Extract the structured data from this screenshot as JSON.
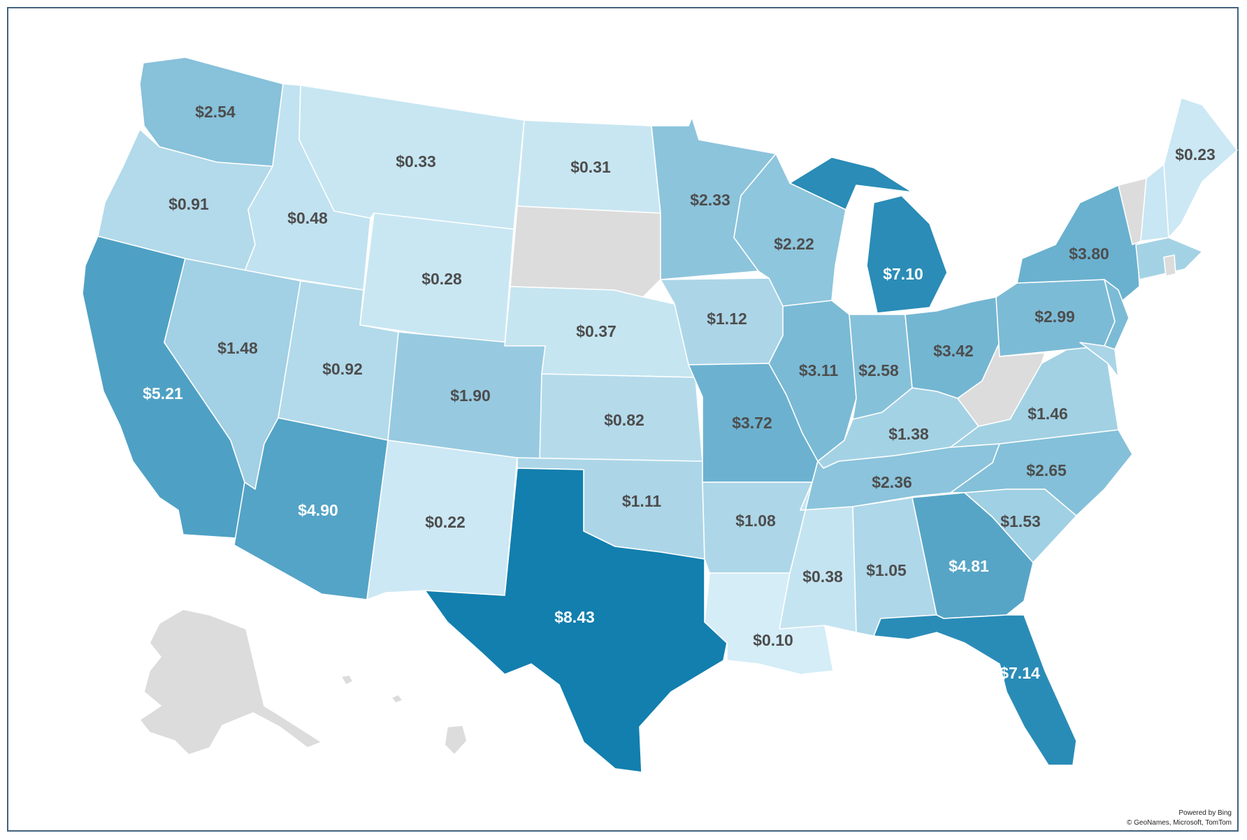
{
  "colors": {
    "frame": "#43637e",
    "no_data": "#dcdcdc",
    "scale_low": "#d4edf7",
    "scale_high": "#127fae",
    "label_dark": "#4d4d4d",
    "label_light": "#ffffff"
  },
  "map_data": {
    "type": "choropleth",
    "value_format": "currency",
    "regions": [
      {
        "state": "WA",
        "label": "$2.54",
        "value": 2.54
      },
      {
        "state": "OR",
        "label": "$0.91",
        "value": 0.91
      },
      {
        "state": "CA",
        "label": "$5.21",
        "value": 5.21
      },
      {
        "state": "ID",
        "label": "$0.48",
        "value": 0.48
      },
      {
        "state": "NV",
        "label": "$1.48",
        "value": 1.48
      },
      {
        "state": "MT",
        "label": "$0.33",
        "value": 0.33
      },
      {
        "state": "WY",
        "label": "$0.28",
        "value": 0.28
      },
      {
        "state": "UT",
        "label": "$0.92",
        "value": 0.92
      },
      {
        "state": "AZ",
        "label": "$4.90",
        "value": 4.9
      },
      {
        "state": "CO",
        "label": "$1.90",
        "value": 1.9
      },
      {
        "state": "NM",
        "label": "$0.22",
        "value": 0.22
      },
      {
        "state": "ND",
        "label": "$0.31",
        "value": 0.31
      },
      {
        "state": "SD",
        "label": "",
        "value": null
      },
      {
        "state": "NE",
        "label": "$0.37",
        "value": 0.37
      },
      {
        "state": "KS",
        "label": "$0.82",
        "value": 0.82
      },
      {
        "state": "OK",
        "label": "$1.11",
        "value": 1.11
      },
      {
        "state": "TX",
        "label": "$8.43",
        "value": 8.43
      },
      {
        "state": "MN",
        "label": "$2.33",
        "value": 2.33
      },
      {
        "state": "IA",
        "label": "$1.12",
        "value": 1.12
      },
      {
        "state": "MO",
        "label": "$3.72",
        "value": 3.72
      },
      {
        "state": "AR",
        "label": "$1.08",
        "value": 1.08
      },
      {
        "state": "LA",
        "label": "$0.10",
        "value": 0.1
      },
      {
        "state": "WI",
        "label": "$2.22",
        "value": 2.22
      },
      {
        "state": "IL",
        "label": "$3.11",
        "value": 3.11
      },
      {
        "state": "MI",
        "label": "$7.10",
        "value": 7.1
      },
      {
        "state": "IN",
        "label": "$2.58",
        "value": 2.58
      },
      {
        "state": "OH",
        "label": "$3.42",
        "value": 3.42
      },
      {
        "state": "KY",
        "label": "$1.38",
        "value": 1.38
      },
      {
        "state": "TN",
        "label": "$2.36",
        "value": 2.36
      },
      {
        "state": "MS",
        "label": "$0.38",
        "value": 0.38
      },
      {
        "state": "AL",
        "label": "$1.05",
        "value": 1.05
      },
      {
        "state": "GA",
        "label": "$4.81",
        "value": 4.81
      },
      {
        "state": "FL",
        "label": "$7.14",
        "value": 7.14
      },
      {
        "state": "SC",
        "label": "$1.53",
        "value": 1.53
      },
      {
        "state": "NC",
        "label": "$2.65",
        "value": 2.65
      },
      {
        "state": "VA",
        "label": "$1.46",
        "value": 1.46
      },
      {
        "state": "WV",
        "label": "",
        "value": null
      },
      {
        "state": "PA",
        "label": "$2.99",
        "value": 2.99
      },
      {
        "state": "NY",
        "label": "$3.80",
        "value": 3.8
      },
      {
        "state": "ME",
        "label": "$0.23",
        "value": 0.23
      },
      {
        "state": "VT",
        "label": "",
        "value": null
      },
      {
        "state": "AK",
        "label": "",
        "value": null
      },
      {
        "state": "HI",
        "label": "",
        "value": null
      }
    ]
  },
  "attribution": {
    "line1": "Powered by Bing",
    "line2": "© GeoNames, Microsoft, TomTom"
  }
}
